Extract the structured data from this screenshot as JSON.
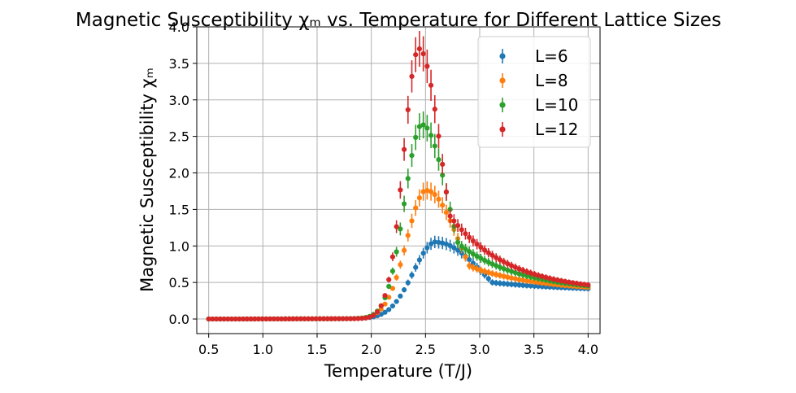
{
  "chart_data": {
    "type": "scatter",
    "title": "Magnetic Susceptibility χₘ vs. Temperature for Different Lattice Sizes",
    "xlabel": "Temperature (T/J)",
    "ylabel": "Magnetic Susceptibility χₘ",
    "xlim": [
      0.39,
      4.11
    ],
    "ylim": [
      -0.2,
      4.0
    ],
    "xticks": [
      0.5,
      1.0,
      1.5,
      2.0,
      2.5,
      3.0,
      3.5,
      4.0
    ],
    "yticks": [
      0.0,
      0.5,
      1.0,
      1.5,
      2.0,
      2.5,
      3.0,
      3.5,
      4.0
    ],
    "x_tick_labels": [
      "0.5",
      "1.0",
      "1.5",
      "2.0",
      "2.5",
      "3.0",
      "3.5",
      "4.0"
    ],
    "y_tick_labels": [
      "0.0",
      "0.5",
      "1.0",
      "1.5",
      "2.0",
      "2.5",
      "3.0",
      "3.5",
      "4.0"
    ],
    "grid": true,
    "legend_position": "top-right",
    "x_range": {
      "start": 0.5,
      "end": 4.0,
      "count": 100
    },
    "series": [
      {
        "name": "L=6",
        "color": "#1f77b4",
        "peak_x": 2.6,
        "peak_y": 1.05,
        "width_left": 0.3,
        "width_right": 0.6,
        "tail_amp": 1.05,
        "tail_decay": 0.8,
        "error_scale": 0.02
      },
      {
        "name": "L=8",
        "color": "#ff7f0e",
        "peak_x": 2.51,
        "peak_y": 1.76,
        "width_left": 0.26,
        "width_right": 0.42,
        "tail_amp": 1.88,
        "tail_decay": 0.61,
        "error_scale": 0.03
      },
      {
        "name": "L=10",
        "color": "#2ca02c",
        "peak_x": 2.47,
        "peak_y": 2.66,
        "width_left": 0.23,
        "width_right": 0.34,
        "tail_amp": 2.85,
        "tail_decay": 0.55,
        "error_scale": 0.045
      },
      {
        "name": "L=12",
        "color": "#d62728",
        "peak_x": 2.44,
        "peak_y": 3.7,
        "width_left": 0.2,
        "width_right": 0.29,
        "tail_amp": 4.1,
        "tail_decay": 0.51,
        "error_scale": 0.06
      }
    ]
  }
}
